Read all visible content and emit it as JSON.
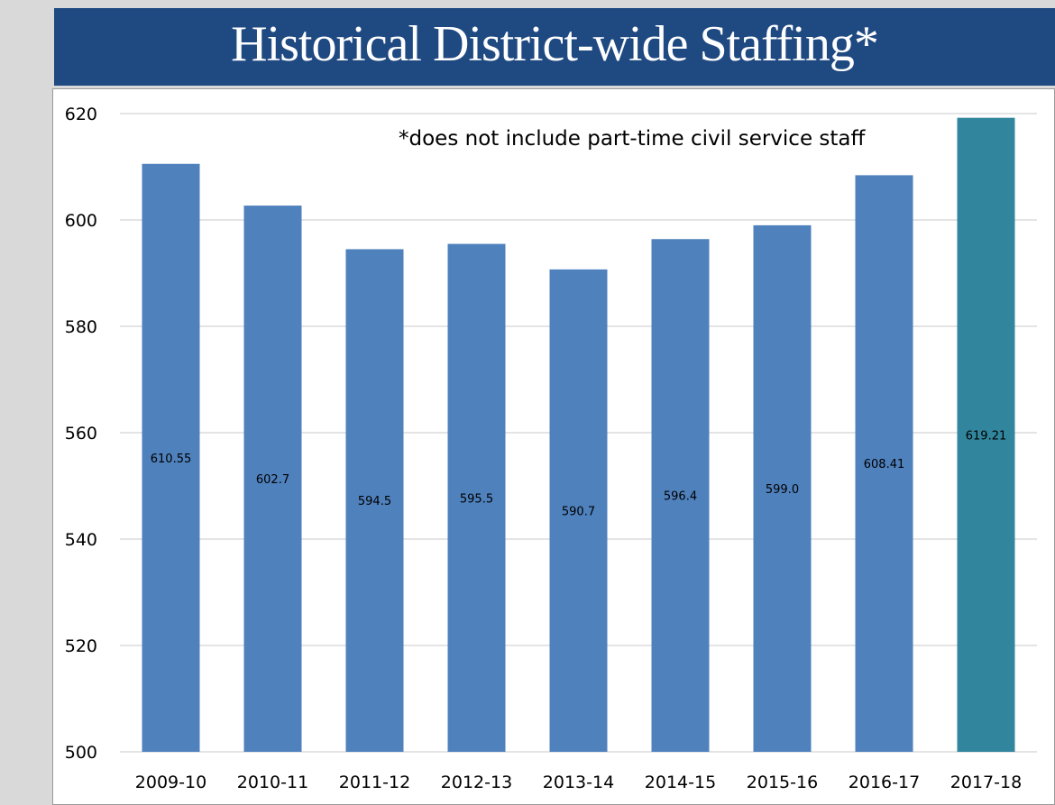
{
  "title": "Historical District-wide Staffing*",
  "note": "*does not include part-time civil service staff",
  "colors": {
    "banner": "#1f4981",
    "bar": "#4f81bd",
    "bar_highlight": "#31859c",
    "grid": "#c8c8c8"
  },
  "chart_data": {
    "type": "bar",
    "categories": [
      "2009-10",
      "2010-11",
      "2011-12",
      "2012-13",
      "2013-14",
      "2014-15",
      "2015-16",
      "2016-17",
      "2017-18"
    ],
    "values": [
      610.55,
      602.7,
      594.5,
      595.5,
      590.7,
      596.4,
      599.0,
      608.41,
      619.21
    ],
    "data_labels": [
      "610.55",
      "602.7",
      "594.5",
      "595.5",
      "590.7",
      "596.4",
      "599.0",
      "608.41",
      "619.21"
    ],
    "highlight_index": 8,
    "ylim": [
      500,
      620
    ],
    "yticks": [
      500,
      520,
      540,
      560,
      580,
      600,
      620
    ],
    "grid": true,
    "legend": "none"
  }
}
